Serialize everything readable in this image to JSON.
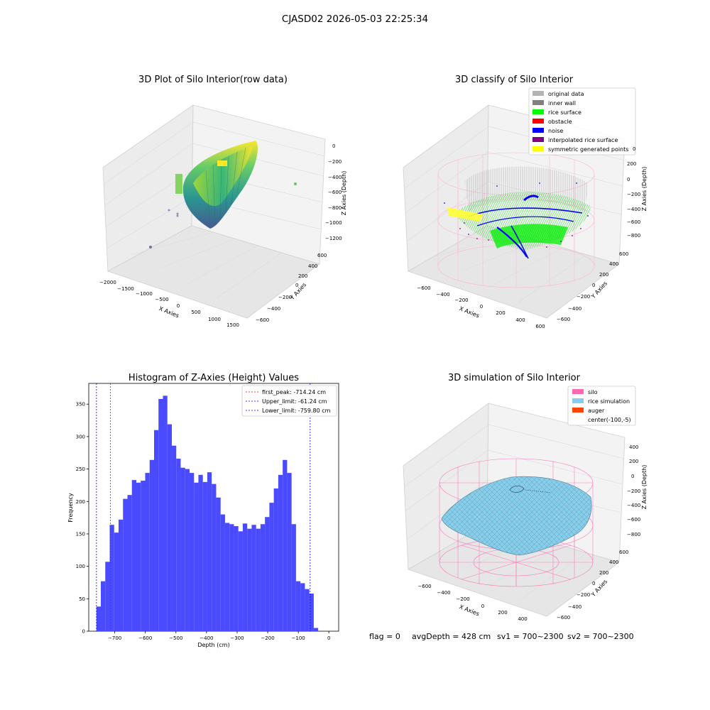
{
  "figure": {
    "title": "CJASD02 2026-05-03 22:25:34",
    "status_line": {
      "flag": "flag = 0",
      "avg_depth": "avgDepth = 428 cm",
      "sv1": "sv1 = 700~2300",
      "sv2": "sv2 = 700~2300"
    }
  },
  "panels": {
    "raw": {
      "title": "3D Plot of Silo Interior(row data)",
      "xlabel": "X Axies",
      "ylabel": "Y Axies",
      "zlabel": "Z Axies (Depth)",
      "xticks": [
        "−2000",
        "−1500",
        "−1000",
        "−500",
        "0",
        "500",
        "1000",
        "1500"
      ],
      "yticks": [
        "−600",
        "−400",
        "−200",
        "0",
        "200",
        "400",
        "600"
      ],
      "zticks": [
        "0",
        "−200",
        "−400",
        "−600",
        "−800",
        "−1000",
        "−1200"
      ]
    },
    "classify": {
      "title": "3D classify of Silo Interior",
      "xlabel": "X Axies",
      "ylabel": "Y Axies",
      "zlabel": "Z Axies (Depth)",
      "xticks": [
        "−600",
        "−400",
        "−200",
        "0",
        "200",
        "400",
        "600"
      ],
      "yticks": [
        "−600",
        "−400",
        "−200",
        "0",
        "200",
        "400",
        "600"
      ],
      "zticks": [
        "200",
        "0",
        "−200",
        "−400",
        "−600",
        "−800"
      ],
      "z_top_partial": "0",
      "legend": [
        {
          "label": "original data",
          "color": "#b4b4b4"
        },
        {
          "label": "inner wall",
          "color": "#808080"
        },
        {
          "label": "rice surface",
          "color": "#00ff00"
        },
        {
          "label": "obstacle",
          "color": "#ff0000"
        },
        {
          "label": "noise",
          "color": "#0000ff"
        },
        {
          "label": "interpolated rice surface",
          "color": "#800080"
        },
        {
          "label": "symmetric generated points",
          "color": "#ffff00"
        }
      ]
    },
    "simulation": {
      "title": "3D simulation of Silo Interior",
      "xlabel": "X Axies",
      "ylabel": "Y Axies",
      "zlabel": "Z Axies (Depth)",
      "xticks": [
        "−600",
        "−400",
        "−200",
        "0",
        "200",
        "400"
      ],
      "yticks": [
        "−600",
        "−400",
        "−200",
        "0",
        "200",
        "400",
        "600"
      ],
      "zticks": [
        "400",
        "200",
        "0",
        "−200",
        "−400",
        "−600",
        "−800"
      ],
      "legend": [
        {
          "label": "silo",
          "color": "#ff69b4"
        },
        {
          "label": "rice simulation",
          "color": "#87ceeb"
        },
        {
          "label": "auger",
          "color": "#ff4500"
        },
        {
          "label": "center(-100,-5)",
          "color": ""
        }
      ]
    }
  },
  "chart_data": {
    "type": "bar",
    "title": "Histogram of Z-Axies (Height) Values",
    "xlabel": "Depth (cm)",
    "ylabel": "Frequency",
    "xlim": [
      -785,
      32
    ],
    "ylim": [
      0,
      382
    ],
    "xticks": [
      -700,
      -600,
      -500,
      -400,
      -300,
      -200,
      -100,
      0
    ],
    "xtick_labels": [
      "−700",
      "−600",
      "−500",
      "−400",
      "−300",
      "−200",
      "−100",
      "0"
    ],
    "yticks": [
      0,
      50,
      100,
      150,
      200,
      250,
      300,
      350
    ],
    "bar_color": "#4a4aff",
    "bin_start": -760,
    "bin_width": 14.5,
    "values": [
      38,
      77,
      107,
      164,
      152,
      172,
      204,
      210,
      233,
      229,
      232,
      244,
      264,
      310,
      358,
      363,
      319,
      286,
      266,
      252,
      250,
      244,
      229,
      241,
      230,
      245,
      227,
      206,
      180,
      167,
      165,
      162,
      154,
      166,
      158,
      164,
      158,
      165,
      176,
      198,
      220,
      241,
      264,
      244,
      165,
      77,
      74,
      65,
      58,
      5
    ],
    "vlines": [
      {
        "label": "first_peak: -714.24 cm",
        "value": -714.24,
        "color": "#ff0000"
      },
      {
        "label": "Upper_limit: -61.24 cm",
        "value": -61.24,
        "color": "#0000ff"
      },
      {
        "label": "Lower_limit: -759.80 cm",
        "value": -759.8,
        "color": "#0000ff"
      }
    ]
  }
}
